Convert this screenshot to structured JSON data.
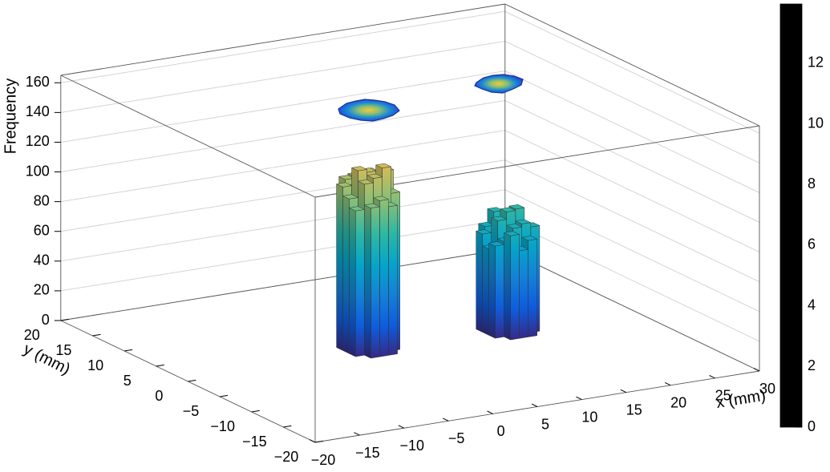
{
  "chart_data": {
    "type": "lego",
    "xlabel": "x (mm)",
    "ylabel": "y (mm)",
    "zlabel": "Frequency",
    "bin_width": 1,
    "x": [
      -1,
      -1,
      -1,
      0,
      0,
      0,
      0,
      0,
      1,
      1,
      1,
      1,
      1,
      2,
      2,
      2,
      2,
      2,
      3,
      3,
      3,
      14,
      14,
      14,
      15,
      15,
      15,
      15,
      15,
      16,
      16,
      16,
      16,
      16,
      17,
      17,
      17,
      17,
      17,
      18,
      18,
      18
    ],
    "y": [
      0,
      1,
      2,
      -1,
      0,
      1,
      2,
      3,
      -1,
      0,
      1,
      2,
      3,
      -1,
      0,
      1,
      2,
      3,
      0,
      1,
      2,
      -1,
      0,
      1,
      -2,
      -1,
      0,
      1,
      2,
      -2,
      -1,
      0,
      1,
      2,
      -2,
      -1,
      0,
      1,
      2,
      -1,
      0,
      1
    ],
    "z": [
      98,
      104,
      110,
      101,
      115,
      122,
      108,
      112,
      105,
      118,
      120,
      96,
      113,
      100,
      124,
      111,
      117,
      103,
      106,
      119,
      102,
      62,
      58,
      66,
      70,
      64,
      76,
      61,
      68,
      59,
      72,
      81,
      63,
      77,
      65,
      74,
      82,
      60,
      67,
      71,
      57,
      69
    ],
    "xlim": [
      -20,
      30
    ],
    "ylim": [
      -20,
      20
    ],
    "zlim": [
      0,
      165
    ],
    "xticks": [
      {
        "value": -20,
        "label": "−20"
      },
      {
        "value": -15,
        "label": "−15"
      },
      {
        "value": -10,
        "label": "−10"
      },
      {
        "value": -5,
        "label": "−5"
      },
      0,
      5,
      10,
      15,
      20,
      25,
      30
    ],
    "yticks": [
      {
        "value": -20,
        "label": "−20"
      },
      {
        "value": -15,
        "label": "−15"
      },
      {
        "value": -10,
        "label": "−10"
      },
      {
        "value": -5,
        "label": "−5"
      },
      0,
      5,
      10,
      15,
      20
    ],
    "zticks": [
      0,
      20,
      40,
      60,
      80,
      100,
      120,
      140,
      160
    ],
    "grid": true,
    "palette": [
      "#352a87",
      "#0f5cdd",
      "#1481d6",
      "#06a4ca",
      "#2eb7a4",
      "#87bf77",
      "#d1bb59",
      "#fec832",
      "#f9fb0e"
    ],
    "colorbar": {
      "lim": [
        0,
        13.95
      ],
      "ticks": [
        0,
        2,
        4,
        6,
        8,
        10,
        12
      ]
    }
  }
}
